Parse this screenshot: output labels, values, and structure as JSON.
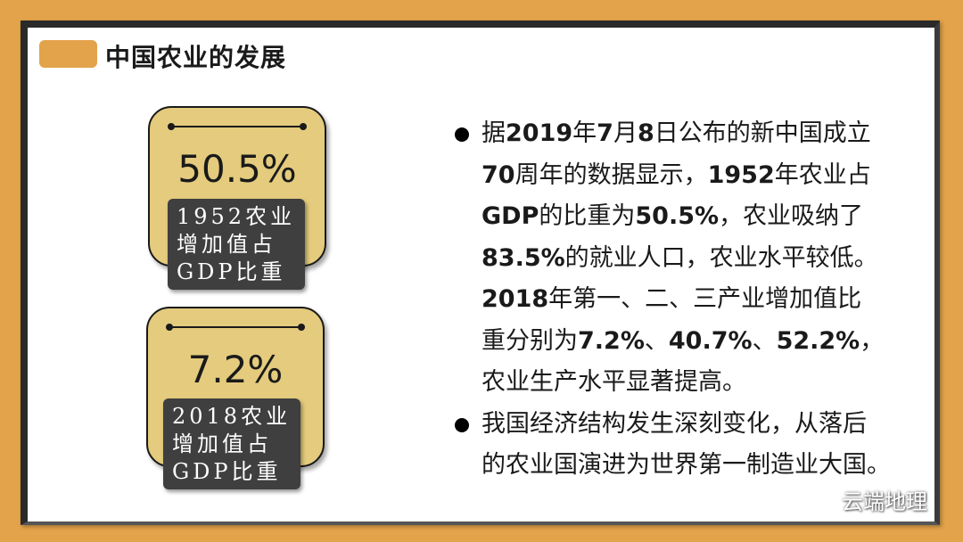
{
  "title": "中国农业的发展",
  "cards": [
    {
      "value": "50.5%",
      "label": "1952农业\n增加值占\nGDP比重"
    },
    {
      "value": "7.2%",
      "label": "2018农业\n增加值占\nGDP比重"
    }
  ],
  "bullets": [
    {
      "segments": [
        [
          "据",
          false
        ],
        [
          "2019",
          true
        ],
        [
          "年",
          false
        ],
        [
          "7",
          true
        ],
        [
          "月",
          false
        ],
        [
          "8",
          true
        ],
        [
          "日公布的新中国成立\n",
          false
        ],
        [
          "70",
          true
        ],
        [
          "周年的数据显示，",
          false
        ],
        [
          "1952",
          true
        ],
        [
          "年农业占\n",
          false
        ],
        [
          "GDP",
          true
        ],
        [
          "的比重为",
          false
        ],
        [
          "50.5%",
          true
        ],
        [
          "，农业吸纳了\n",
          false
        ],
        [
          "83.5%",
          true
        ],
        [
          "的就业人口，农业水平较低。\n",
          false
        ],
        [
          "2018",
          true
        ],
        [
          "年第一、二、三产业增加值比\n重分别为",
          false
        ],
        [
          "7.2%",
          true
        ],
        [
          "、",
          false
        ],
        [
          "40.7%",
          true
        ],
        [
          "、",
          false
        ],
        [
          "52.2%",
          true
        ],
        [
          "，\n农业生产水平显著提高。",
          false
        ]
      ]
    },
    {
      "segments": [
        [
          "我国经济结构发生深刻变化，从落后\n的农业国演进为世界第一制造业大国。",
          false
        ]
      ]
    }
  ],
  "watermark": {
    "icon": "wechat-icon",
    "text": "云端地理"
  },
  "colors": {
    "frame": "#e3a34a",
    "card": "#e4cb7d",
    "label_bg": "#3f3f3f"
  }
}
